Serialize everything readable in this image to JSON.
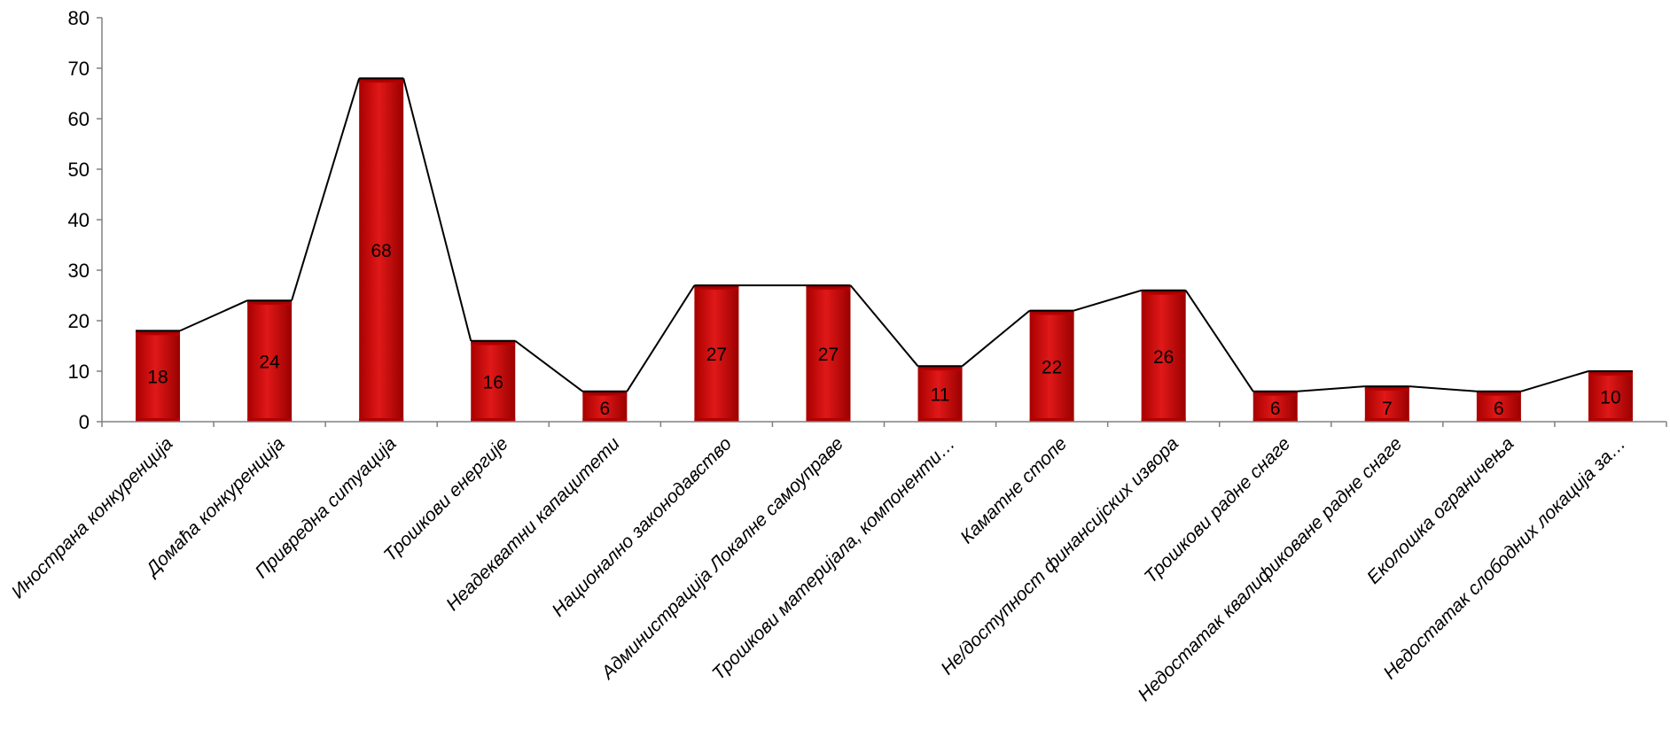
{
  "chart_data": {
    "type": "bar",
    "title": "",
    "xlabel": "",
    "ylabel": "",
    "ylim": [
      0,
      80
    ],
    "yticks": [
      0,
      10,
      20,
      30,
      40,
      50,
      60,
      70,
      80
    ],
    "categories": [
      "Иностранa конкуренција",
      "Домаћа конкуренција",
      "Привредна ситуација",
      "Трошкови енергије",
      "Неадекватни капацитети",
      "Национално законодавство",
      "Администрација Локалне самоуправе",
      "Трошкови материјала, компоненти…",
      "Каматне стопе",
      "Не/доступност финансијских извора",
      "Трошкови радне снаге",
      "Недостатак квалификоване радне снаге",
      "Еколошка ограничења",
      "Недостатак слободних локација за…"
    ],
    "values": [
      18,
      24,
      68,
      16,
      6,
      27,
      27,
      11,
      22,
      26,
      6,
      7,
      6,
      10
    ],
    "data_labels": [
      "18",
      "24",
      "68",
      "16",
      "6",
      "27",
      "27",
      "11",
      "22",
      "26",
      "6",
      "7",
      "6",
      "10"
    ],
    "grid": false,
    "legend": "none",
    "overlay_line": true,
    "colors": {
      "bar_dark": "#a30000",
      "bar_mid": "#d40000",
      "bar_light": "#e21a1a",
      "line": "#000000",
      "axis": "#808080"
    }
  }
}
